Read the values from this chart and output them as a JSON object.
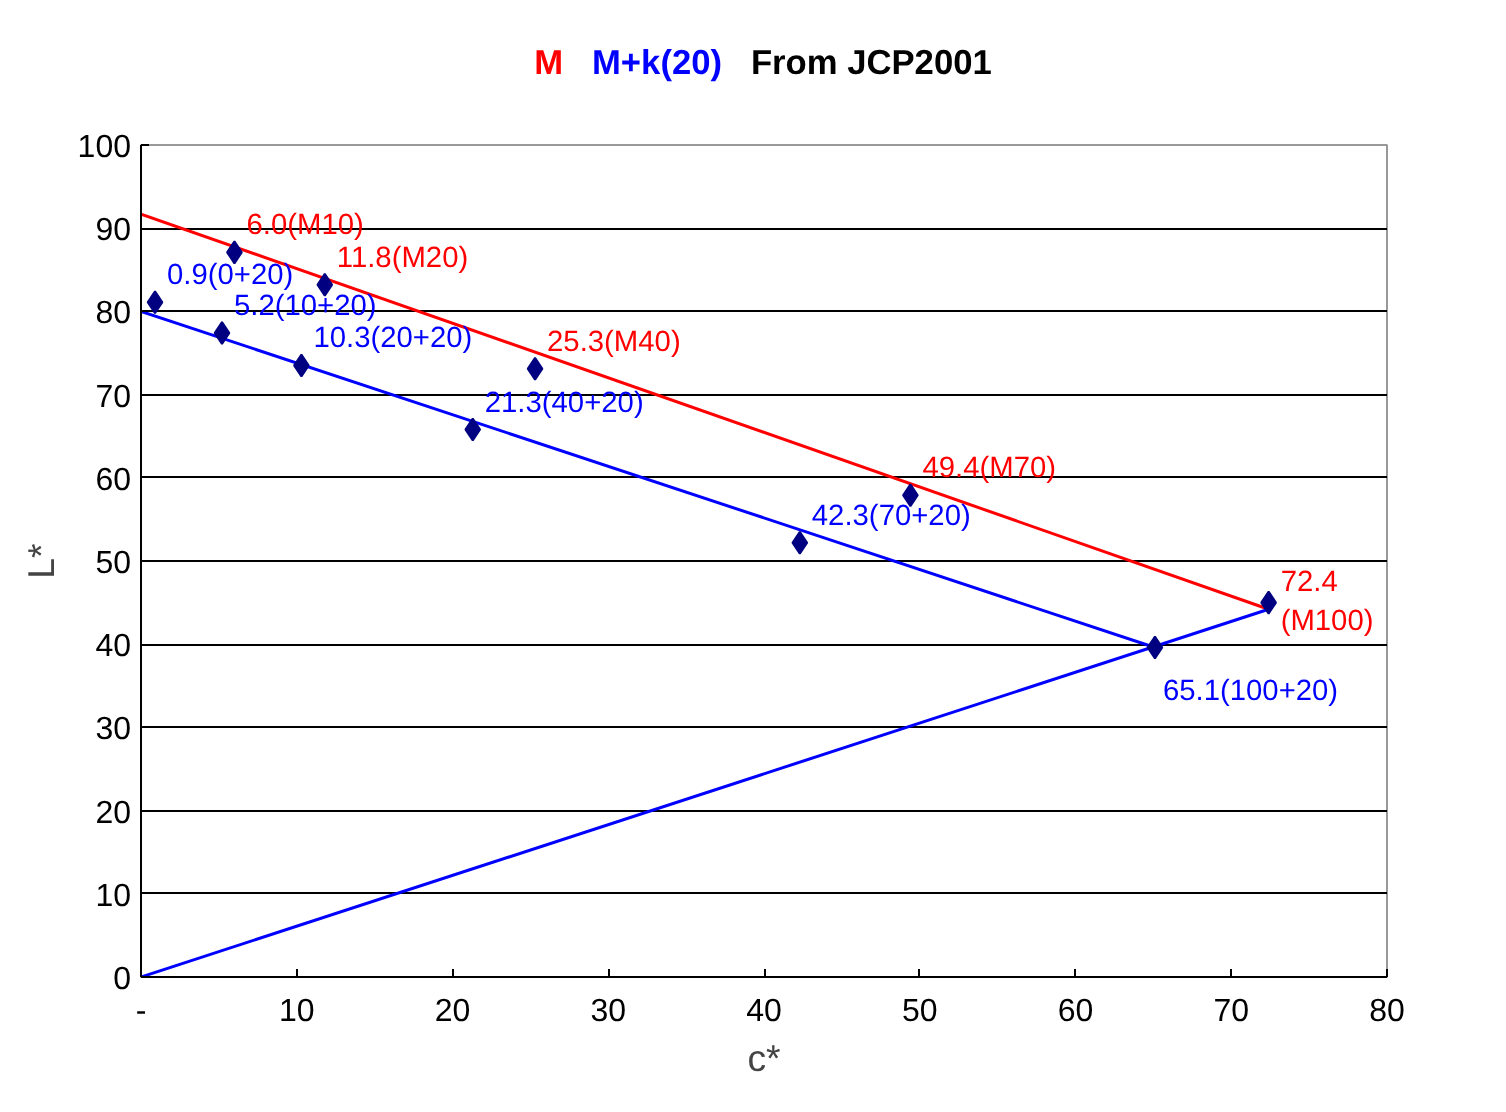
{
  "chart_data": {
    "type": "scatter",
    "title": "From JCP2001",
    "xlabel": "c*",
    "ylabel": "L*",
    "xlim": [
      0,
      80
    ],
    "xticks": [
      {
        "value": 0,
        "label": "-"
      },
      10,
      20,
      30,
      40,
      50,
      60,
      70,
      80
    ],
    "ylim": [
      0,
      100
    ],
    "yticks": [
      0,
      10,
      20,
      30,
      40,
      50,
      60,
      70,
      80,
      90,
      100
    ],
    "grid": "y",
    "series": [
      {
        "name": "M",
        "type": "line",
        "color": "#ff0000",
        "x": [
          0,
          72.4
        ],
        "values": [
          91.7,
          44.2
        ]
      },
      {
        "name": "M+k(20)",
        "type": "line",
        "color": "#0000ff",
        "x": [
          0,
          65.1
        ],
        "values": [
          80,
          39.6
        ]
      },
      {
        "type": "line",
        "color": "#0000ff",
        "x": [
          0,
          72.4
        ],
        "values": [
          0,
          44.2
        ]
      },
      {
        "marker": "diamond",
        "color": "#000080",
        "x": [
          6.0,
          11.8,
          25.3,
          49.4,
          72.4
        ],
        "values": [
          87.1,
          83.2,
          73.1,
          57.9,
          45.0
        ],
        "value_labels": [
          "6.0(M10)",
          "11.8(M20)",
          "25.3(M40)",
          "49.4(M70)",
          "72.4(M100)"
        ]
      },
      {
        "marker": "diamond",
        "color": "#000080",
        "x": [
          0.9,
          5.2,
          10.3,
          21.3,
          42.3,
          65.1
        ],
        "values": [
          81.1,
          77.4,
          73.5,
          65.8,
          52.2,
          39.6
        ],
        "value_labels": [
          "0.9(0+20)",
          "5.2(10+20)",
          "10.3(20+20)",
          "21.3(40+20)",
          "42.3(70+20)",
          "65.1(100+20)"
        ]
      }
    ]
  }
}
